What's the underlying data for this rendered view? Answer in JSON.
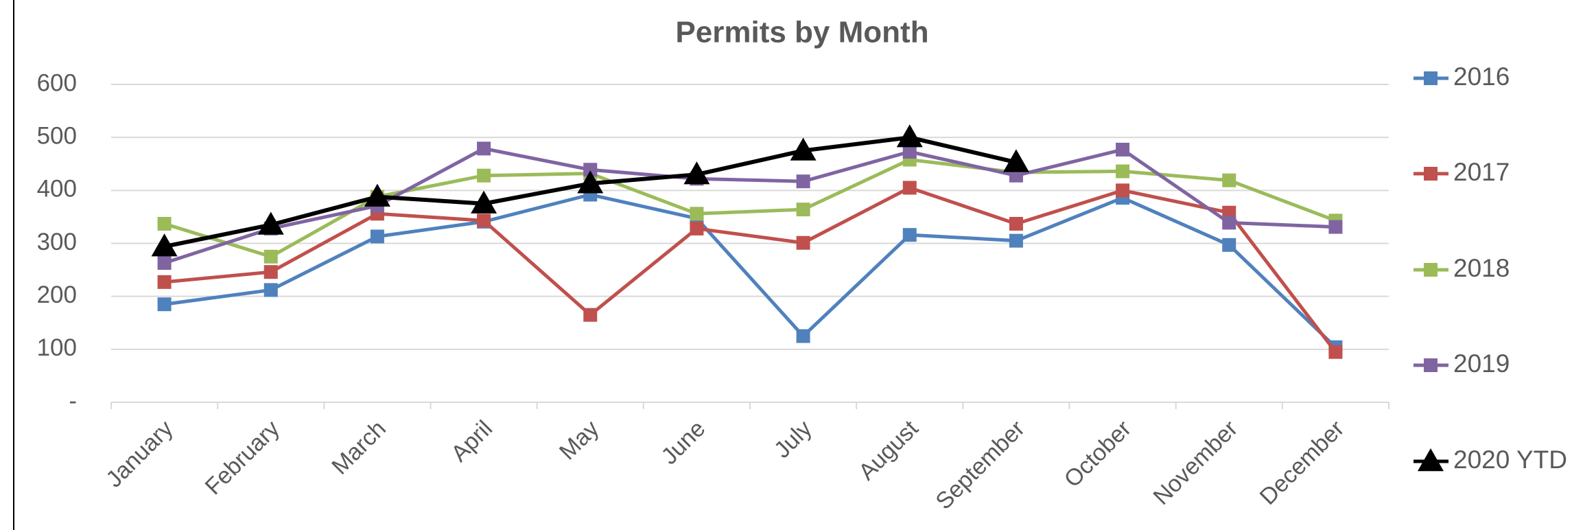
{
  "chart_data": {
    "type": "line",
    "title": "Permits by Month",
    "categories": [
      "January",
      "February",
      "March",
      "April",
      "May",
      "June",
      "July",
      "August",
      "September",
      "October",
      "November",
      "December"
    ],
    "series": [
      {
        "name": "2016",
        "color": "#4f81bd",
        "marker": "square",
        "values": [
          185,
          212,
          313,
          341,
          392,
          347,
          125,
          316,
          305,
          386,
          297,
          104
        ]
      },
      {
        "name": "2017",
        "color": "#c0504d",
        "marker": "square",
        "values": [
          227,
          246,
          356,
          343,
          165,
          328,
          301,
          405,
          337,
          400,
          358,
          95
        ]
      },
      {
        "name": "2018",
        "color": "#9bbb59",
        "marker": "square",
        "values": [
          337,
          275,
          388,
          428,
          432,
          356,
          364,
          458,
          434,
          436,
          419,
          343
        ]
      },
      {
        "name": "2019",
        "color": "#8064a2",
        "marker": "square",
        "values": [
          263,
          328,
          371,
          479,
          439,
          422,
          417,
          473,
          428,
          477,
          339,
          331
        ]
      },
      {
        "name": "2020 YTD",
        "color": "#000000",
        "marker": "triangle",
        "values": [
          294,
          335,
          388,
          375,
          413,
          430,
          475,
          500,
          453,
          null,
          null,
          null
        ]
      }
    ],
    "ylim": [
      0,
      600
    ],
    "yticks": [
      {
        "value": 0,
        "label": "-"
      },
      100,
      200,
      300,
      400,
      500,
      600
    ],
    "grid": true,
    "legend": "right"
  }
}
